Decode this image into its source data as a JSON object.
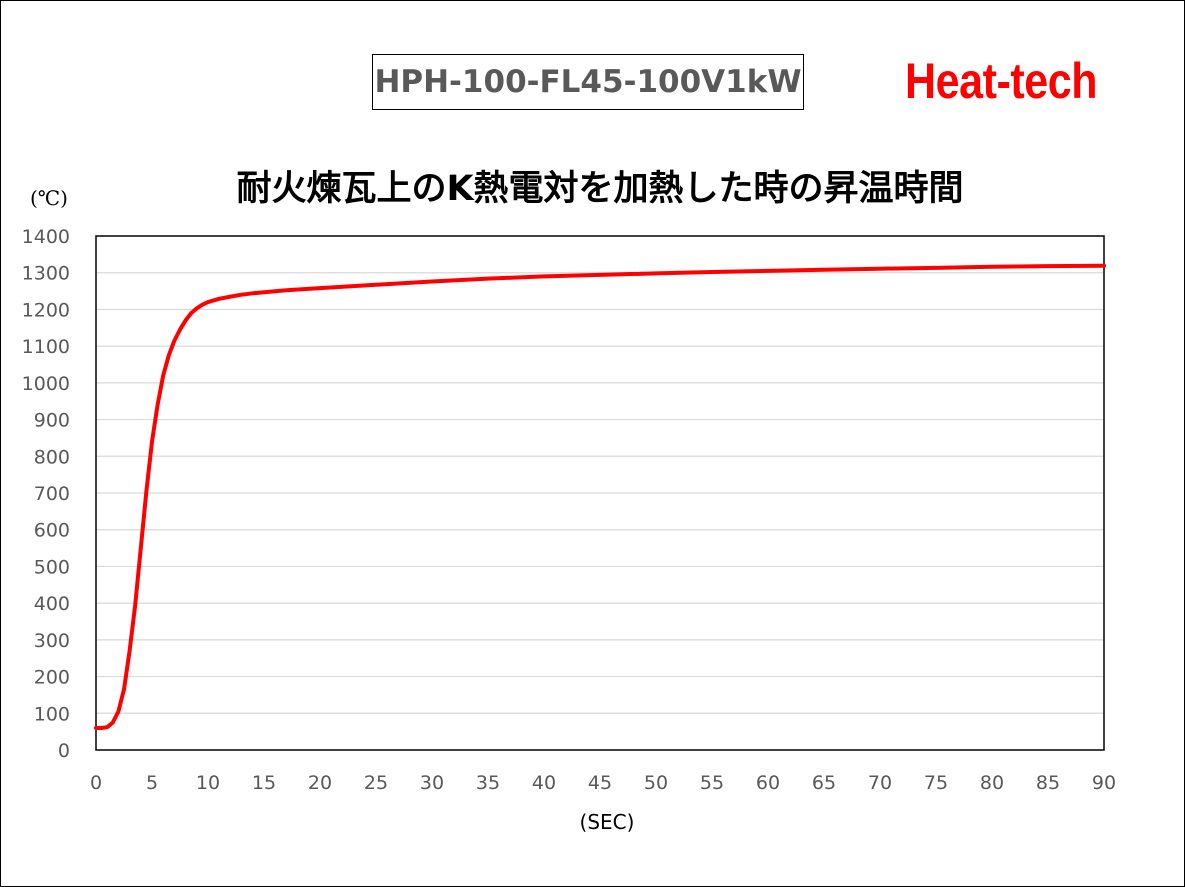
{
  "model_label": "HPH-100-FL45-100V1kW",
  "brand": "Heat-tech",
  "chart_data": {
    "type": "line",
    "title": "耐火煉瓦上のK熱電対を加熱した時の昇温時間",
    "ylabel": "(℃)",
    "xlabel": "(SEC)",
    "xlim": [
      0,
      90
    ],
    "ylim": [
      0,
      1400
    ],
    "x_ticks": [
      0,
      5,
      10,
      15,
      20,
      25,
      30,
      35,
      40,
      45,
      50,
      55,
      60,
      65,
      70,
      75,
      80,
      85,
      90
    ],
    "y_ticks": [
      0,
      100,
      200,
      300,
      400,
      500,
      600,
      700,
      800,
      900,
      1000,
      1100,
      1200,
      1300,
      1400
    ],
    "grid": "horizontal",
    "series": [
      {
        "color": "#ff0000",
        "x": [
          0,
          0.5,
          1,
          1.5,
          2,
          2.5,
          3,
          3.5,
          4,
          4.5,
          5,
          5.5,
          6,
          6.5,
          7,
          7.5,
          8,
          8.5,
          9,
          9.5,
          10,
          11,
          12,
          13,
          14,
          15,
          17,
          20,
          25,
          30,
          35,
          40,
          45,
          50,
          55,
          60,
          65,
          70,
          75,
          80,
          85,
          90
        ],
        "y": [
          60,
          60,
          62,
          75,
          105,
          165,
          270,
          395,
          550,
          705,
          840,
          940,
          1020,
          1075,
          1115,
          1145,
          1170,
          1190,
          1203,
          1213,
          1220,
          1229,
          1235,
          1240,
          1244,
          1247,
          1252,
          1258,
          1267,
          1276,
          1284,
          1290,
          1294,
          1298,
          1302,
          1305,
          1308,
          1311,
          1313,
          1316,
          1318,
          1319
        ]
      }
    ]
  }
}
